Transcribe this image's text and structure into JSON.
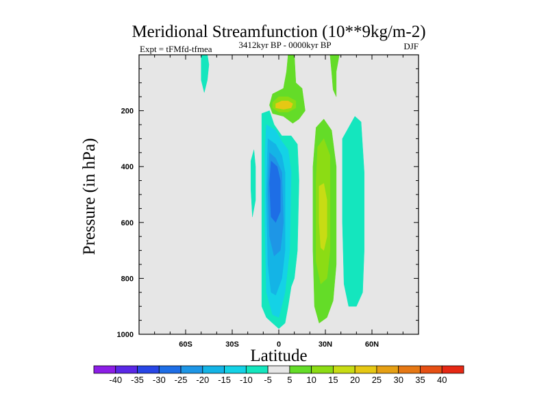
{
  "chart_data": {
    "type": "contour",
    "title": "Meridional Streamfunction (10**9kg/m-2)",
    "left_label": "Expt = tFMfd-tfmea",
    "center_label": "3412kyr BP - 0000kyr BP",
    "right_label": "DJF",
    "xlabel": "Latitude",
    "ylabel": "Pressure (in hPa)",
    "xlim": [
      -90,
      90
    ],
    "ylim": [
      1000,
      0
    ],
    "x_ticks": [
      {
        "value": -60,
        "label": "60S"
      },
      {
        "value": -30,
        "label": "30S"
      },
      {
        "value": 0,
        "label": "0"
      },
      {
        "value": 30,
        "label": "30N"
      },
      {
        "value": 60,
        "label": "60N"
      }
    ],
    "y_ticks": [
      {
        "value": 200,
        "label": "200"
      },
      {
        "value": 400,
        "label": "400"
      },
      {
        "value": 600,
        "label": "600"
      },
      {
        "value": 800,
        "label": "800"
      },
      {
        "value": 1000,
        "label": "1000"
      }
    ],
    "background_color": "#e6e6e6",
    "colorbar": {
      "levels": [
        "-40",
        "-35",
        "-30",
        "-25",
        "-20",
        "-15",
        "-10",
        "-5",
        "5",
        "10",
        "15",
        "20",
        "25",
        "30",
        "35",
        "40"
      ],
      "colors": [
        "#8c1ee6",
        "#5a28e6",
        "#2846e6",
        "#1e6ee6",
        "#1e96e6",
        "#14b4e6",
        "#14d2e6",
        "#14e6be",
        "#e6e6e6",
        "#64dc28",
        "#8cdc14",
        "#c8dc14",
        "#e6c814",
        "#e6a014",
        "#e67814",
        "#e65014",
        "#e62814"
      ]
    },
    "regions": [
      {
        "name": "neg-5-cell-sh-upper",
        "color": "#14e6be",
        "points": [
          [
            -50,
            0
          ],
          [
            -46,
            0
          ],
          [
            -45,
            35
          ],
          [
            -46,
            90
          ],
          [
            -48,
            135
          ],
          [
            -50,
            90
          ]
        ]
      },
      {
        "name": "neg-5-cell-tropics",
        "color": "#14e6be",
        "points": [
          [
            -11,
            210
          ],
          [
            -6,
            200
          ],
          [
            -3,
            250
          ],
          [
            2,
            290
          ],
          [
            8,
            290
          ],
          [
            12,
            320
          ],
          [
            13,
            450
          ],
          [
            12,
            700
          ],
          [
            10,
            800
          ],
          [
            8,
            830
          ],
          [
            6,
            900
          ],
          [
            4,
            960
          ],
          [
            0,
            980
          ],
          [
            -4,
            960
          ],
          [
            -8,
            940
          ],
          [
            -11,
            900
          ],
          [
            -11,
            800
          ],
          [
            -11,
            500
          ],
          [
            -11,
            350
          ]
        ]
      },
      {
        "name": "neg-5-cell-sh-small",
        "color": "#14e6be",
        "points": [
          [
            -18,
            380
          ],
          [
            -16,
            340
          ],
          [
            -15,
            400
          ],
          [
            -15,
            520
          ],
          [
            -17,
            580
          ],
          [
            -18,
            480
          ]
        ]
      },
      {
        "name": "neg-5-cell-nh",
        "color": "#14e6be",
        "points": [
          [
            41,
            300
          ],
          [
            49,
            220
          ],
          [
            53,
            240
          ],
          [
            55,
            420
          ],
          [
            55,
            700
          ],
          [
            54,
            850
          ],
          [
            50,
            900
          ],
          [
            45,
            900
          ],
          [
            42,
            820
          ],
          [
            41,
            600
          ],
          [
            41,
            450
          ]
        ]
      },
      {
        "name": "neg-10-cell",
        "color": "#14d2e6",
        "points": [
          [
            -8,
            250
          ],
          [
            -2,
            270
          ],
          [
            2,
            310
          ],
          [
            6,
            340
          ],
          [
            8,
            420
          ],
          [
            7,
            700
          ],
          [
            4,
            850
          ],
          [
            0,
            940
          ],
          [
            -4,
            930
          ],
          [
            -8,
            850
          ],
          [
            -9,
            600
          ],
          [
            -9,
            350
          ]
        ]
      },
      {
        "name": "neg-15-cell",
        "color": "#14b4e6",
        "points": [
          [
            -7,
            300
          ],
          [
            -2,
            320
          ],
          [
            2,
            360
          ],
          [
            4,
            420
          ],
          [
            4,
            700
          ],
          [
            2,
            800
          ],
          [
            -2,
            860
          ],
          [
            -5,
            850
          ],
          [
            -7,
            750
          ],
          [
            -8,
            500
          ]
        ]
      },
      {
        "name": "neg-20-cell",
        "color": "#1e96e6",
        "points": [
          [
            -6,
            350
          ],
          [
            -2,
            370
          ],
          [
            2,
            420
          ],
          [
            3,
            600
          ],
          [
            1,
            700
          ],
          [
            -3,
            720
          ],
          [
            -6,
            650
          ],
          [
            -7,
            480
          ]
        ]
      },
      {
        "name": "neg-25-cell",
        "color": "#1e6ee6",
        "points": [
          [
            -5,
            380
          ],
          [
            -1,
            400
          ],
          [
            1,
            450
          ],
          [
            1,
            560
          ],
          [
            -2,
            600
          ],
          [
            -5,
            580
          ],
          [
            -6,
            460
          ]
        ]
      },
      {
        "name": "pos-5-cell-eq-upper",
        "color": "#64dc28",
        "points": [
          [
            6,
            0
          ],
          [
            10,
            0
          ],
          [
            11,
            100
          ],
          [
            15,
            120
          ],
          [
            17,
            200
          ],
          [
            13,
            230
          ],
          [
            9,
            245
          ],
          [
            3,
            220
          ],
          [
            -4,
            210
          ],
          [
            -6,
            180
          ],
          [
            -4,
            140
          ],
          [
            3,
            120
          ],
          [
            5,
            60
          ]
        ]
      },
      {
        "name": "pos-5-cell-nh-upper",
        "color": "#64dc28",
        "points": [
          [
            33,
            0
          ],
          [
            39,
            0
          ],
          [
            37,
            60
          ],
          [
            37,
            150
          ],
          [
            35,
            125
          ],
          [
            34,
            60
          ]
        ]
      },
      {
        "name": "pos-5-cell-nh",
        "color": "#64dc28",
        "points": [
          [
            24,
            260
          ],
          [
            29,
            230
          ],
          [
            34,
            270
          ],
          [
            37,
            400
          ],
          [
            37,
            750
          ],
          [
            35,
            880
          ],
          [
            31,
            940
          ],
          [
            26,
            960
          ],
          [
            23,
            900
          ],
          [
            22,
            700
          ],
          [
            22,
            400
          ]
        ]
      },
      {
        "name": "pos-10-cell-nh",
        "color": "#8cdc14",
        "points": [
          [
            25,
            330
          ],
          [
            29,
            300
          ],
          [
            33,
            360
          ],
          [
            33,
            700
          ],
          [
            31,
            800
          ],
          [
            27,
            820
          ],
          [
            24,
            740
          ],
          [
            24,
            450
          ]
        ]
      },
      {
        "name": "pos-15-cell-nh",
        "color": "#c8dc14",
        "points": [
          [
            26,
            470
          ],
          [
            29,
            460
          ],
          [
            31,
            520
          ],
          [
            31,
            650
          ],
          [
            29,
            700
          ],
          [
            27,
            690
          ],
          [
            26,
            600
          ]
        ]
      },
      {
        "name": "pos-10-cell-eq-upper",
        "color": "#8cdc14",
        "points": [
          [
            -4,
            170
          ],
          [
            0,
            150
          ],
          [
            6,
            150
          ],
          [
            11,
            165
          ],
          [
            11,
            190
          ],
          [
            6,
            205
          ],
          [
            0,
            205
          ],
          [
            -4,
            190
          ]
        ]
      },
      {
        "name": "pos-15-cell-eq-upper",
        "color": "#e6c814",
        "points": [
          [
            -2,
            175
          ],
          [
            2,
            165
          ],
          [
            6,
            165
          ],
          [
            9,
            175
          ],
          [
            8,
            190
          ],
          [
            3,
            195
          ],
          [
            -2,
            190
          ]
        ]
      }
    ]
  }
}
